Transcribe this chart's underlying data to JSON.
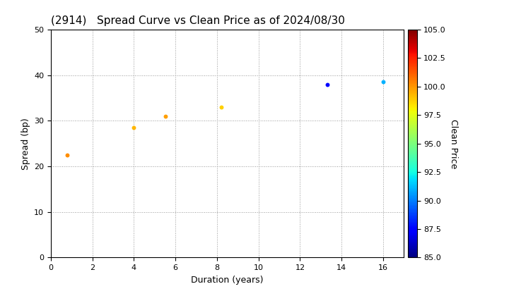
{
  "title": "(2914)   Spread Curve vs Clean Price as of 2024/08/30",
  "xlabel": "Duration (years)",
  "ylabel": "Spread (bp)",
  "colorbar_label": "Clean Price",
  "xlim": [
    0,
    17
  ],
  "ylim": [
    0,
    50
  ],
  "xticks": [
    0,
    2,
    4,
    6,
    8,
    10,
    12,
    14,
    16
  ],
  "yticks": [
    0,
    10,
    20,
    30,
    40,
    50
  ],
  "colorbar_min": 85.0,
  "colorbar_max": 105.0,
  "colorbar_ticks": [
    85.0,
    87.5,
    90.0,
    92.5,
    95.0,
    97.5,
    100.0,
    102.5,
    105.0
  ],
  "points": [
    {
      "duration": 0.8,
      "spread": 22.5,
      "clean_price": 100.2
    },
    {
      "duration": 4.0,
      "spread": 28.5,
      "clean_price": 99.3
    },
    {
      "duration": 5.5,
      "spread": 31.0,
      "clean_price": 99.8
    },
    {
      "duration": 8.2,
      "spread": 33.0,
      "clean_price": 98.8
    },
    {
      "duration": 13.3,
      "spread": 38.0,
      "clean_price": 87.5
    },
    {
      "duration": 16.0,
      "spread": 38.5,
      "clean_price": 91.0
    }
  ],
  "marker_size": 18,
  "background_color": "#ffffff",
  "grid_color": "#999999",
  "colormap": "jet"
}
